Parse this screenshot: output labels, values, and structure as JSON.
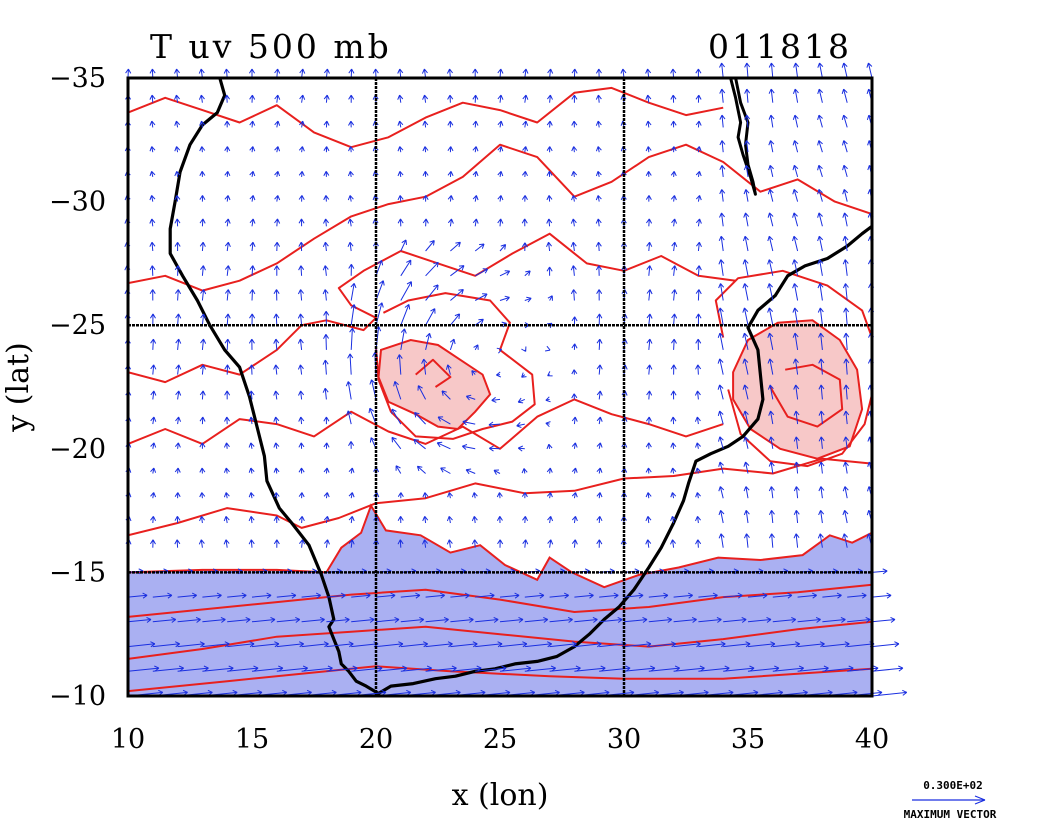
{
  "chart_data": {
    "type": "contour",
    "title": "T uv 500 mb",
    "date_label": "011818",
    "xlabel": "x (lon)",
    "ylabel": "y (lat)",
    "xlim": [
      10,
      40
    ],
    "ylim": [
      -35,
      -10
    ],
    "x_ticks": [
      10,
      15,
      20,
      25,
      30,
      35,
      40
    ],
    "y_ticks": [
      -35,
      -30,
      -25,
      -20,
      -15,
      -10
    ],
    "grid_x": [
      20,
      30
    ],
    "grid_y": [
      -25,
      -15
    ],
    "legend": {
      "vector_magnitude": "0.300E+02",
      "vector_caption": "MAXIMUM VECTOR"
    },
    "colors": {
      "contour": "#e8201e",
      "vector": "#1a2fe0",
      "cold_fill": "#aab0f2",
      "warm_fill": "#f7c8c8",
      "coast": "#000000"
    },
    "coastline": [
      [
        13.7,
        -35.0
      ],
      [
        13.9,
        -34.3
      ],
      [
        13.6,
        -33.6
      ],
      [
        13.0,
        -33.1
      ],
      [
        12.5,
        -32.3
      ],
      [
        12.1,
        -31.2
      ],
      [
        11.9,
        -30.0
      ],
      [
        11.7,
        -28.9
      ],
      [
        11.7,
        -27.9
      ],
      [
        12.2,
        -27.0
      ],
      [
        12.8,
        -26.0
      ],
      [
        13.3,
        -25.0
      ],
      [
        13.9,
        -24.0
      ],
      [
        14.5,
        -23.3
      ],
      [
        14.9,
        -22.1
      ],
      [
        15.2,
        -20.9
      ],
      [
        15.5,
        -19.7
      ],
      [
        15.6,
        -18.7
      ],
      [
        16.1,
        -17.6
      ],
      [
        16.6,
        -17.0
      ],
      [
        17.3,
        -16.1
      ],
      [
        17.8,
        -14.9
      ],
      [
        18.1,
        -14.0
      ],
      [
        18.3,
        -13.1
      ],
      [
        18.1,
        -12.8
      ],
      [
        18.3,
        -12.3
      ],
      [
        18.5,
        -11.8
      ],
      [
        18.6,
        -11.3
      ],
      [
        18.9,
        -11.0
      ],
      [
        19.2,
        -10.6
      ],
      [
        19.6,
        -10.4
      ],
      [
        20.1,
        -10.1
      ],
      [
        20.6,
        -10.4
      ],
      [
        21.5,
        -10.5
      ],
      [
        22.4,
        -10.7
      ],
      [
        23.2,
        -10.8
      ],
      [
        24.0,
        -11.0
      ],
      [
        24.8,
        -11.1
      ],
      [
        25.6,
        -11.3
      ],
      [
        26.5,
        -11.4
      ],
      [
        27.3,
        -11.6
      ],
      [
        28.0,
        -12.0
      ],
      [
        28.6,
        -12.5
      ],
      [
        29.2,
        -13.1
      ],
      [
        29.8,
        -13.6
      ],
      [
        30.4,
        -14.3
      ],
      [
        31.0,
        -15.2
      ],
      [
        31.5,
        -16.0
      ],
      [
        32.0,
        -17.0
      ],
      [
        32.4,
        -17.9
      ],
      [
        32.6,
        -18.6
      ],
      [
        32.9,
        -19.5
      ],
      [
        33.5,
        -19.8
      ],
      [
        34.2,
        -20.1
      ],
      [
        34.8,
        -20.5
      ],
      [
        35.4,
        -21.2
      ],
      [
        35.6,
        -22.0
      ],
      [
        35.5,
        -23.0
      ],
      [
        35.4,
        -24.0
      ],
      [
        35.0,
        -24.9
      ],
      [
        35.4,
        -25.6
      ],
      [
        36.1,
        -26.2
      ],
      [
        36.6,
        -27.0
      ],
      [
        37.3,
        -27.4
      ],
      [
        38.2,
        -27.7
      ],
      [
        39.0,
        -28.2
      ],
      [
        39.6,
        -28.7
      ],
      [
        40.0,
        -29.0
      ]
    ],
    "lake": [
      [
        34.3,
        -35.0
      ],
      [
        34.5,
        -34.2
      ],
      [
        34.7,
        -33.2
      ],
      [
        34.6,
        -32.6
      ],
      [
        34.8,
        -31.9
      ],
      [
        35.1,
        -31.0
      ],
      [
        35.3,
        -30.3
      ],
      [
        35.2,
        -30.8
      ],
      [
        35.0,
        -31.5
      ],
      [
        34.9,
        -32.3
      ],
      [
        35.0,
        -33.2
      ],
      [
        34.7,
        -34.0
      ],
      [
        34.5,
        -35.0
      ]
    ],
    "cold_region": [
      [
        10,
        -10
      ],
      [
        10,
        -15
      ],
      [
        13,
        -15.1
      ],
      [
        16,
        -15.1
      ],
      [
        18,
        -15.0
      ],
      [
        18.6,
        -16.0
      ],
      [
        19.4,
        -16.6
      ],
      [
        19.8,
        -17.7
      ],
      [
        20.4,
        -16.7
      ],
      [
        21.8,
        -16.5
      ],
      [
        23.0,
        -15.8
      ],
      [
        24.2,
        -16.1
      ],
      [
        25.2,
        -15.3
      ],
      [
        26.5,
        -14.7
      ],
      [
        27.0,
        -15.6
      ],
      [
        27.9,
        -15.0
      ],
      [
        29.2,
        -14.4
      ],
      [
        30.6,
        -14.9
      ],
      [
        32.2,
        -15.2
      ],
      [
        33.8,
        -15.6
      ],
      [
        35.5,
        -15.5
      ],
      [
        37.2,
        -15.7
      ],
      [
        38.3,
        -16.5
      ],
      [
        39.2,
        -16.2
      ],
      [
        40,
        -16.6
      ],
      [
        40,
        -10
      ]
    ],
    "warm_regions": [
      [
        [
          20.2,
          -24.0
        ],
        [
          21.4,
          -24.4
        ],
        [
          22.5,
          -24.2
        ],
        [
          23.4,
          -23.6
        ],
        [
          24.3,
          -23.0
        ],
        [
          24.6,
          -22.2
        ],
        [
          24.0,
          -21.5
        ],
        [
          23.3,
          -20.8
        ],
        [
          22.5,
          -20.9
        ],
        [
          21.6,
          -21.4
        ],
        [
          20.5,
          -21.9
        ],
        [
          20.1,
          -22.9
        ]
      ],
      [
        [
          34.4,
          -22.0
        ],
        [
          35.1,
          -20.8
        ],
        [
          36.3,
          -20.0
        ],
        [
          37.8,
          -19.6
        ],
        [
          39.1,
          -20.1
        ],
        [
          39.6,
          -21.6
        ],
        [
          39.4,
          -23.2
        ],
        [
          38.7,
          -24.4
        ],
        [
          37.6,
          -25.2
        ],
        [
          36.2,
          -25.1
        ],
        [
          35.0,
          -24.4
        ],
        [
          34.4,
          -23.1
        ]
      ]
    ],
    "contours": [
      [
        [
          10,
          -10.2
        ],
        [
          14,
          -10.6
        ],
        [
          18,
          -11.0
        ],
        [
          20,
          -11.2
        ],
        [
          23,
          -11.0
        ],
        [
          27,
          -10.8
        ],
        [
          30,
          -10.7
        ],
        [
          34,
          -10.7
        ],
        [
          37,
          -10.9
        ],
        [
          40,
          -11.1
        ]
      ],
      [
        [
          10,
          -11.5
        ],
        [
          13,
          -11.9
        ],
        [
          16,
          -12.4
        ],
        [
          19,
          -12.6
        ],
        [
          22,
          -12.8
        ],
        [
          25,
          -12.5
        ],
        [
          28,
          -12.2
        ],
        [
          31,
          -12.0
        ],
        [
          34,
          -12.3
        ],
        [
          37,
          -12.7
        ],
        [
          40,
          -13.0
        ]
      ],
      [
        [
          10,
          -13.2
        ],
        [
          13,
          -13.5
        ],
        [
          16,
          -13.8
        ],
        [
          19,
          -14.1
        ],
        [
          22,
          -14.3
        ],
        [
          25,
          -13.9
        ],
        [
          28,
          -13.4
        ],
        [
          31,
          -13.6
        ],
        [
          34,
          -14.0
        ],
        [
          37,
          -14.2
        ],
        [
          40,
          -14.5
        ]
      ],
      [
        [
          10,
          -16.5
        ],
        [
          12,
          -17.0
        ],
        [
          14,
          -17.6
        ],
        [
          16,
          -17.3
        ],
        [
          17,
          -16.8
        ],
        [
          18.5,
          -17.2
        ],
        [
          20,
          -17.8
        ],
        [
          22,
          -18.0
        ],
        [
          24,
          -18.6
        ],
        [
          26,
          -18.2
        ],
        [
          28,
          -18.3
        ],
        [
          30,
          -18.8
        ],
        [
          32,
          -18.9
        ],
        [
          34,
          -19.2
        ],
        [
          36,
          -19.0
        ],
        [
          38,
          -19.6
        ],
        [
          40,
          -19.4
        ]
      ],
      [
        [
          10,
          -20.2
        ],
        [
          11.5,
          -20.8
        ],
        [
          13,
          -20.2
        ],
        [
          14.5,
          -21.2
        ],
        [
          16,
          -21.0
        ],
        [
          17.5,
          -20.5
        ],
        [
          19,
          -21.5
        ],
        [
          20.5,
          -20.7
        ],
        [
          22,
          -20.2
        ],
        [
          23.5,
          -20.9
        ],
        [
          25,
          -20.0
        ],
        [
          26.5,
          -21.3
        ],
        [
          28,
          -22.0
        ],
        [
          29.5,
          -21.4
        ],
        [
          31,
          -21.0
        ],
        [
          32.5,
          -20.5
        ],
        [
          34,
          -21.0
        ]
      ],
      [
        [
          10,
          -23.1
        ],
        [
          11.5,
          -22.7
        ],
        [
          13,
          -23.4
        ],
        [
          14.5,
          -23.0
        ],
        [
          16,
          -24.0
        ],
        [
          17,
          -25.0
        ],
        [
          18,
          -25.2
        ],
        [
          19.5,
          -24.8
        ],
        [
          20,
          -25.3
        ],
        [
          19,
          -25.8
        ],
        [
          18.5,
          -26.5
        ],
        [
          19.5,
          -27.2
        ],
        [
          21,
          -28.0
        ],
        [
          22.5,
          -27.5
        ],
        [
          24,
          -27.0
        ],
        [
          25.5,
          -27.9
        ],
        [
          27,
          -28.7
        ],
        [
          28.5,
          -27.5
        ],
        [
          30,
          -27.2
        ],
        [
          31.5,
          -27.8
        ],
        [
          33,
          -27.0
        ],
        [
          34.5,
          -26.8
        ]
      ],
      [
        [
          10,
          -26.7
        ],
        [
          11.5,
          -27.0
        ],
        [
          13,
          -26.4
        ],
        [
          14.5,
          -26.8
        ],
        [
          16,
          -27.5
        ],
        [
          17.5,
          -28.5
        ],
        [
          19,
          -29.4
        ],
        [
          20.5,
          -29.9
        ],
        [
          22,
          -30.2
        ],
        [
          23.5,
          -31.0
        ],
        [
          25,
          -32.3
        ],
        [
          26.5,
          -31.8
        ],
        [
          28,
          -30.2
        ],
        [
          29.5,
          -30.8
        ],
        [
          31,
          -31.8
        ],
        [
          32.5,
          -32.3
        ],
        [
          34,
          -31.6
        ],
        [
          35.5,
          -30.4
        ],
        [
          37,
          -30.9
        ],
        [
          38.5,
          -30.0
        ],
        [
          40,
          -29.5
        ]
      ],
      [
        [
          10,
          -33.6
        ],
        [
          11.5,
          -34.2
        ],
        [
          13,
          -33.7
        ],
        [
          14.5,
          -33.2
        ],
        [
          16,
          -33.9
        ],
        [
          17.5,
          -32.8
        ],
        [
          19,
          -32.2
        ],
        [
          20.5,
          -32.6
        ],
        [
          22,
          -33.4
        ],
        [
          23.5,
          -34.0
        ],
        [
          25,
          -33.7
        ],
        [
          26.5,
          -33.2
        ],
        [
          28,
          -34.4
        ],
        [
          29.5,
          -34.6
        ],
        [
          31,
          -34.0
        ],
        [
          32.5,
          -33.5
        ],
        [
          34,
          -33.8
        ]
      ],
      [
        [
          20.3,
          -25.5
        ],
        [
          21.3,
          -26.0
        ],
        [
          22.8,
          -26.3
        ],
        [
          24.6,
          -26.0
        ],
        [
          25.4,
          -25.1
        ],
        [
          25.0,
          -24.0
        ],
        [
          26.3,
          -23.0
        ],
        [
          26.4,
          -21.8
        ],
        [
          25.5,
          -21.1
        ],
        [
          24.3,
          -20.8
        ],
        [
          23.1,
          -20.4
        ],
        [
          21.6,
          -20.5
        ],
        [
          20.6,
          -21.5
        ],
        [
          20.1,
          -22.8
        ],
        [
          20.0,
          -24.1
        ]
      ],
      [
        [
          21.6,
          -23.0
        ],
        [
          22.3,
          -23.6
        ],
        [
          23.0,
          -22.9
        ],
        [
          22.4,
          -22.5
        ]
      ],
      [
        [
          34.2,
          -22.4
        ],
        [
          34.7,
          -20.6
        ],
        [
          35.9,
          -19.5
        ],
        [
          37.4,
          -19.3
        ],
        [
          38.8,
          -19.8
        ],
        [
          39.7,
          -21.0
        ],
        [
          40,
          -22.2
        ]
      ],
      [
        [
          34.0,
          -24.5
        ],
        [
          33.7,
          -26.0
        ],
        [
          34.6,
          -26.9
        ],
        [
          36.4,
          -27.2
        ],
        [
          38.2,
          -26.6
        ],
        [
          39.6,
          -25.6
        ],
        [
          40,
          -24.5
        ]
      ],
      [
        [
          35.9,
          -22.5
        ],
        [
          36.6,
          -21.3
        ],
        [
          37.8,
          -20.9
        ],
        [
          38.8,
          -21.6
        ],
        [
          38.7,
          -22.8
        ],
        [
          37.6,
          -23.4
        ],
        [
          36.5,
          -23.2
        ]
      ]
    ],
    "vector_grid": {
      "nx": 30,
      "ny": 25
    }
  }
}
